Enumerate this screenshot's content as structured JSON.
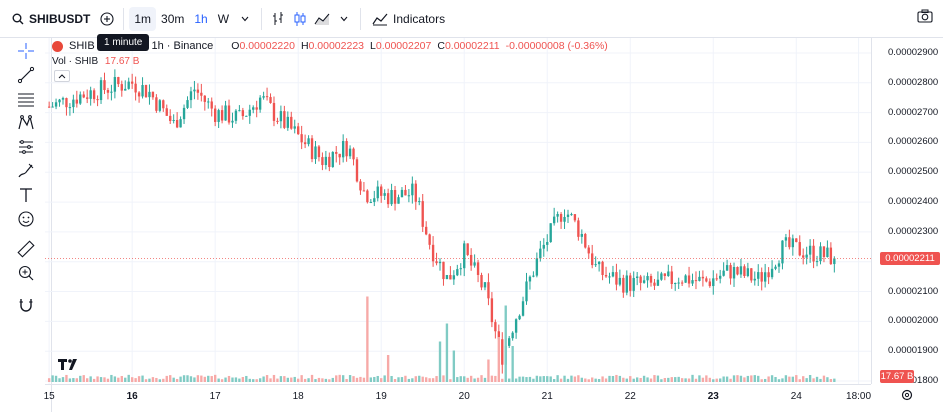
{
  "toolbar": {
    "symbol": "SHIBUSDT",
    "intervals": [
      {
        "label": "1m",
        "active": true
      },
      {
        "label": "30m",
        "active": false
      },
      {
        "label": "1h",
        "active": false,
        "blue": true
      },
      {
        "label": "W",
        "active": false
      }
    ],
    "indicators_label": "Indicators"
  },
  "tooltip": "1 minute",
  "legend": {
    "symbol_short": "SHIB / ",
    "timeframe_exchange": "· 1h · Binance",
    "o_label": "O",
    "o_value": "0.00002220",
    "h_label": "H",
    "h_value": "0.00002223",
    "l_label": "L",
    "l_value": "0.00002207",
    "c_label": "C",
    "c_value": "0.00002211",
    "change": "-0.00000008 (-0.36%)",
    "vol_label": "Vol · SHIB",
    "vol_value": "17.67 B"
  },
  "colors": {
    "up": "#26a69a",
    "down": "#ef5350",
    "vol_up": "#80cbc4",
    "vol_down": "#f7a9a7",
    "accent": "#2962ff"
  },
  "price_axis": {
    "ticks": [
      "0.00002900",
      "0.00002800",
      "0.00002700",
      "0.00002600",
      "0.00002500",
      "0.00002400",
      "0.00002300",
      "0.00002200",
      "0.00002100",
      "0.00002000",
      "0.00001900",
      "0.00001800"
    ],
    "current_price": "0.00002211",
    "current_volume": "17.67 B"
  },
  "time_axis": {
    "ticks": [
      {
        "label": "15",
        "bold": false
      },
      {
        "label": "16",
        "bold": true
      },
      {
        "label": "17",
        "bold": false
      },
      {
        "label": "18",
        "bold": false
      },
      {
        "label": "19",
        "bold": false
      },
      {
        "label": "20",
        "bold": false
      },
      {
        "label": "21",
        "bold": false
      },
      {
        "label": "22",
        "bold": false
      },
      {
        "label": "23",
        "bold": true
      },
      {
        "label": "24",
        "bold": false
      },
      {
        "label": "18:00",
        "bold": false
      }
    ]
  },
  "chart_data": {
    "type": "candlestick",
    "price_range": [
      1.79e-05,
      2.93e-05
    ],
    "anchors": [
      {
        "day": 15.0,
        "price": 2.72e-05
      },
      {
        "day": 15.4,
        "price": 2.76e-05
      },
      {
        "day": 15.8,
        "price": 2.79e-05
      },
      {
        "day": 16.0,
        "price": 2.8e-05
      },
      {
        "day": 16.2,
        "price": 2.77e-05
      },
      {
        "day": 16.5,
        "price": 2.66e-05
      },
      {
        "day": 16.75,
        "price": 2.78e-05
      },
      {
        "day": 17.0,
        "price": 2.7e-05
      },
      {
        "day": 17.3,
        "price": 2.68e-05
      },
      {
        "day": 17.55,
        "price": 2.75e-05
      },
      {
        "day": 17.7,
        "price": 2.7e-05
      },
      {
        "day": 18.0,
        "price": 2.62e-05
      },
      {
        "day": 18.3,
        "price": 2.54e-05
      },
      {
        "day": 18.6,
        "price": 2.59e-05
      },
      {
        "day": 18.8,
        "price": 2.43e-05
      },
      {
        "day": 19.1,
        "price": 2.42e-05
      },
      {
        "day": 19.4,
        "price": 2.43e-05
      },
      {
        "day": 19.6,
        "price": 2.25e-05
      },
      {
        "day": 19.8,
        "price": 2.14e-05
      },
      {
        "day": 20.0,
        "price": 2.23e-05
      },
      {
        "day": 20.25,
        "price": 2.1e-05
      },
      {
        "day": 20.45,
        "price": 1.88e-05
      },
      {
        "day": 20.6,
        "price": 2e-05
      },
      {
        "day": 20.9,
        "price": 2.22e-05
      },
      {
        "day": 21.2,
        "price": 2.38e-05
      },
      {
        "day": 21.4,
        "price": 2.3e-05
      },
      {
        "day": 21.6,
        "price": 2.17e-05
      },
      {
        "day": 21.9,
        "price": 2.13e-05
      },
      {
        "day": 22.3,
        "price": 2.12e-05
      },
      {
        "day": 22.6,
        "price": 2.15e-05
      },
      {
        "day": 22.9,
        "price": 2.13e-05
      },
      {
        "day": 23.2,
        "price": 2.17e-05
      },
      {
        "day": 23.55,
        "price": 2.14e-05
      },
      {
        "day": 23.85,
        "price": 2.25e-05
      },
      {
        "day": 24.2,
        "price": 2.23e-05
      },
      {
        "day": 24.5,
        "price": 2.211e-05
      }
    ],
    "volume_spikes": [
      {
        "day": 18.82,
        "value": 0.95
      },
      {
        "day": 19.08,
        "value": 0.3
      },
      {
        "day": 19.7,
        "value": 0.45
      },
      {
        "day": 19.78,
        "value": 0.65
      },
      {
        "day": 19.86,
        "value": 0.35
      },
      {
        "day": 20.3,
        "value": 0.25
      },
      {
        "day": 20.42,
        "value": 0.5
      },
      {
        "day": 20.5,
        "value": 0.85
      },
      {
        "day": 20.57,
        "value": 0.4
      }
    ],
    "time_range": [
      14.95,
      24.9
    ]
  }
}
